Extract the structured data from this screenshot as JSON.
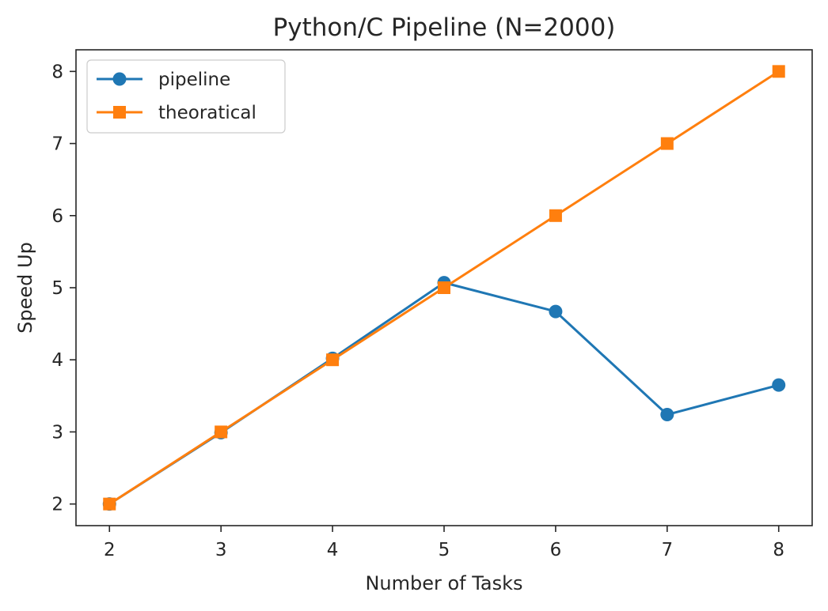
{
  "chart_data": {
    "type": "line",
    "title": "Python/C Pipeline (N=2000)",
    "xlabel": "Number of Tasks",
    "ylabel": "Speed Up",
    "x": [
      2,
      3,
      4,
      5,
      6,
      7,
      8
    ],
    "xlim": [
      1.7,
      8.3
    ],
    "ylim": [
      1.7,
      8.3
    ],
    "xticks": [
      "2",
      "3",
      "4",
      "5",
      "6",
      "7",
      "8"
    ],
    "yticks": [
      "2",
      "3",
      "4",
      "5",
      "6",
      "7",
      "8"
    ],
    "grid": false,
    "legend_position": "top-left",
    "series": [
      {
        "name": "pipeline",
        "marker": "circle",
        "color": "#1f77b4",
        "values": [
          2.0,
          2.99,
          4.02,
          5.07,
          4.67,
          3.24,
          3.65
        ]
      },
      {
        "name": "theoratical",
        "marker": "square",
        "color": "#ff7f0e",
        "values": [
          2,
          3,
          4,
          5,
          6,
          7,
          8
        ]
      }
    ]
  }
}
